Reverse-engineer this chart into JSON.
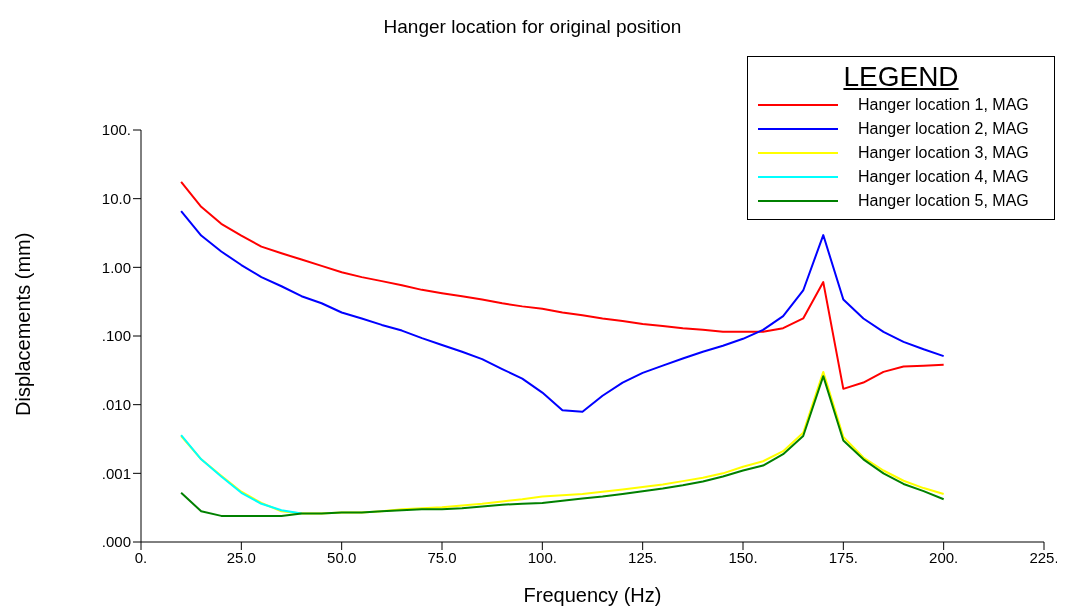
{
  "chart_data": {
    "type": "line",
    "title": "Hanger location for original position",
    "xlabel": "Frequency (Hz)",
    "ylabel": "Displacements (mm)",
    "legend_title": "LEGEND",
    "legend": "top right",
    "log": "y",
    "grid": false,
    "marker": "none",
    "line_style": "solid",
    "xlim": [
      0,
      225
    ],
    "xticks": [
      {
        "value": 0,
        "label": "0."
      },
      {
        "value": 25,
        "label": "25.0"
      },
      {
        "value": 50,
        "label": "50.0"
      },
      {
        "value": 75,
        "label": "75.0"
      },
      {
        "value": 100,
        "label": "100."
      },
      {
        "value": 125,
        "label": "125."
      },
      {
        "value": 150,
        "label": "150."
      },
      {
        "value": 175,
        "label": "175."
      },
      {
        "value": 200,
        "label": "200."
      },
      {
        "value": 225,
        "label": "225."
      }
    ],
    "ylim": [
      0.0001,
      100
    ],
    "yticks": [
      {
        "value": 0.0001,
        "label": ".000"
      },
      {
        "value": 0.001,
        "label": ".001"
      },
      {
        "value": 0.01,
        "label": ".010"
      },
      {
        "value": 0.1,
        "label": ".100"
      },
      {
        "value": 1,
        "label": "1.00"
      },
      {
        "value": 10,
        "label": "10.0"
      },
      {
        "value": 100,
        "label": "100."
      }
    ],
    "x": [
      10,
      15,
      20,
      25,
      30,
      35,
      40,
      45,
      50,
      55,
      60,
      65,
      70,
      75,
      80,
      85,
      90,
      95,
      100,
      105,
      110,
      115,
      120,
      125,
      130,
      135,
      140,
      145,
      150,
      155,
      160,
      165,
      170,
      175,
      180,
      185,
      190,
      195,
      200
    ],
    "series": [
      {
        "name": "Hanger location 1, MAG",
        "color": "#ff0000",
        "values": [
          17.5,
          7.6,
          4.3,
          2.9,
          2.0,
          1.6,
          1.3,
          1.05,
          0.85,
          0.72,
          0.63,
          0.55,
          0.47,
          0.42,
          0.38,
          0.34,
          0.3,
          0.27,
          0.25,
          0.22,
          0.2,
          0.18,
          0.165,
          0.15,
          0.14,
          0.13,
          0.123,
          0.115,
          0.115,
          0.115,
          0.13,
          0.18,
          0.61,
          0.017,
          0.021,
          0.03,
          0.036,
          0.037,
          0.038
        ]
      },
      {
        "name": "Hanger location 2, MAG",
        "color": "#0000ff",
        "values": [
          6.6,
          2.9,
          1.7,
          1.08,
          0.72,
          0.53,
          0.38,
          0.3,
          0.22,
          0.18,
          0.145,
          0.12,
          0.093,
          0.074,
          0.059,
          0.046,
          0.033,
          0.024,
          0.015,
          0.0083,
          0.0079,
          0.0135,
          0.021,
          0.029,
          0.037,
          0.047,
          0.059,
          0.072,
          0.091,
          0.123,
          0.195,
          0.46,
          2.95,
          0.34,
          0.18,
          0.115,
          0.082,
          0.064,
          0.051
        ]
      },
      {
        "name": "Hanger location 3, MAG",
        "color": "#ffff00",
        "values": [
          0.0035,
          0.0016,
          0.00092,
          0.00054,
          0.00037,
          0.00028,
          0.00026,
          0.00026,
          0.00027,
          0.00027,
          0.00028,
          0.0003,
          0.00031,
          0.00032,
          0.00034,
          0.00036,
          0.00039,
          0.00042,
          0.00046,
          0.00048,
          0.0005,
          0.00054,
          0.00058,
          0.00063,
          0.00069,
          0.00077,
          0.00086,
          0.001,
          0.00125,
          0.0015,
          0.0021,
          0.0039,
          0.03,
          0.0034,
          0.0017,
          0.0011,
          0.00078,
          0.00061,
          0.0005
        ]
      },
      {
        "name": "Hanger location 4, MAG",
        "color": "#00ffff",
        "values": [
          0.0036,
          0.0016,
          0.0009,
          0.00052,
          0.00036,
          0.00029,
          0.00026,
          null,
          null,
          null,
          null,
          null,
          null,
          null,
          null,
          null,
          null,
          null,
          null,
          null,
          null,
          null,
          null,
          null,
          null,
          null,
          null,
          null,
          null,
          null,
          null,
          null,
          null,
          null,
          null,
          null,
          null,
          null,
          null
        ]
      },
      {
        "name": "Hanger location 5, MAG",
        "color": "#008000",
        "values": [
          0.00052,
          0.00028,
          0.00024,
          0.00024,
          0.00024,
          0.00024,
          0.00026,
          0.00026,
          0.00027,
          0.00027,
          0.00028,
          0.00029,
          0.0003,
          0.0003,
          0.00031,
          0.00033,
          0.00035,
          0.00036,
          0.00037,
          0.0004,
          0.00043,
          0.00046,
          0.0005,
          0.00055,
          0.0006,
          0.00067,
          0.00076,
          0.0009,
          0.0011,
          0.0013,
          0.0019,
          0.0035,
          0.026,
          0.003,
          0.0016,
          0.001,
          0.0007,
          0.00055,
          0.00042
        ]
      }
    ]
  }
}
